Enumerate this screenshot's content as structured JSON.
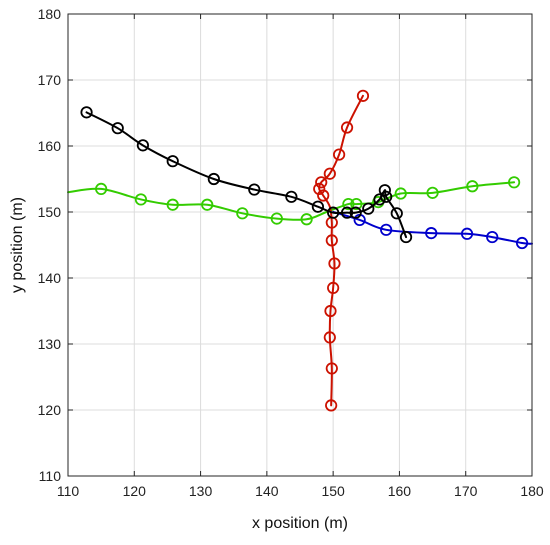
{
  "chart_data": {
    "type": "line",
    "xlabel": "x position (m)",
    "ylabel": "y position (m)",
    "xlim": [
      110,
      180
    ],
    "ylim": [
      110,
      180
    ],
    "xticks": [
      110,
      120,
      130,
      140,
      150,
      160,
      170,
      180
    ],
    "yticks": [
      110,
      120,
      130,
      140,
      150,
      160,
      170,
      180
    ],
    "grid": true,
    "series": [
      {
        "color": "#0000cc",
        "points": [
          [
            150,
            150
          ],
          [
            154,
            148.8
          ],
          [
            158,
            147.3
          ],
          [
            164.8,
            146.8
          ],
          [
            170.2,
            146.7
          ],
          [
            174,
            146.2
          ],
          [
            178.5,
            145.3
          ],
          [
            180,
            145.2
          ]
        ],
        "marker_points": [
          [
            154,
            148.8
          ],
          [
            158,
            147.3
          ],
          [
            164.8,
            146.8
          ],
          [
            170.2,
            146.7
          ],
          [
            174,
            146.2
          ],
          [
            178.5,
            145.3
          ]
        ]
      },
      {
        "color": "#33cc00",
        "points": [
          [
            110,
            153
          ],
          [
            115,
            153.5
          ],
          [
            121,
            151.9
          ],
          [
            125.8,
            151.1
          ],
          [
            131,
            151.1
          ],
          [
            136.3,
            149.8
          ],
          [
            141.5,
            149
          ],
          [
            146,
            148.9
          ],
          [
            149,
            150
          ],
          [
            152.3,
            151.2
          ],
          [
            153.5,
            151.2
          ],
          [
            156.8,
            151.5
          ],
          [
            160.2,
            152.8
          ],
          [
            165,
            152.9
          ],
          [
            171,
            153.9
          ],
          [
            177.3,
            154.5
          ]
        ],
        "marker_points": [
          [
            115,
            153.5
          ],
          [
            121,
            151.9
          ],
          [
            125.8,
            151.1
          ],
          [
            131,
            151.1
          ],
          [
            136.3,
            149.8
          ],
          [
            141.5,
            149
          ],
          [
            146,
            148.9
          ],
          [
            152.3,
            151.2
          ],
          [
            153.5,
            151.2
          ],
          [
            156.8,
            151.5
          ],
          [
            160.2,
            152.8
          ],
          [
            165,
            152.9
          ],
          [
            171,
            153.9
          ],
          [
            177.3,
            154.5
          ]
        ]
      },
      {
        "color": "#cc1100",
        "points": [
          [
            149.7,
            120.7
          ],
          [
            149.8,
            126.3
          ],
          [
            149.5,
            131
          ],
          [
            149.6,
            135
          ],
          [
            150,
            138.5
          ],
          [
            150.2,
            142.2
          ],
          [
            149.8,
            145.7
          ],
          [
            149.8,
            148.4
          ],
          [
            149.5,
            150.8
          ],
          [
            148.5,
            152.5
          ],
          [
            147.9,
            153.5
          ],
          [
            148.2,
            154.5
          ],
          [
            149.5,
            155.8
          ],
          [
            150.9,
            158.7
          ],
          [
            152.1,
            162.8
          ],
          [
            154.5,
            167.6
          ]
        ],
        "marker_points": [
          [
            149.7,
            120.7
          ],
          [
            149.8,
            126.3
          ],
          [
            149.5,
            131
          ],
          [
            149.6,
            135
          ],
          [
            150,
            138.5
          ],
          [
            150.2,
            142.2
          ],
          [
            149.8,
            145.7
          ],
          [
            149.8,
            148.4
          ],
          [
            148.5,
            152.5
          ],
          [
            147.9,
            153.5
          ],
          [
            148.2,
            154.5
          ],
          [
            149.5,
            155.8
          ],
          [
            150.9,
            158.7
          ],
          [
            152.1,
            162.8
          ],
          [
            154.5,
            167.6
          ]
        ]
      },
      {
        "color": "#000000",
        "points": [
          [
            112.8,
            165.1
          ],
          [
            117.5,
            162.7
          ],
          [
            121.3,
            160.1
          ],
          [
            125.8,
            157.7
          ],
          [
            132,
            155
          ],
          [
            138.1,
            153.4
          ],
          [
            143.7,
            152.3
          ],
          [
            147.7,
            150.8
          ],
          [
            150,
            149.9
          ],
          [
            152.1,
            149.9
          ],
          [
            153.4,
            149.9
          ],
          [
            155.3,
            150.5
          ],
          [
            157,
            151.9
          ],
          [
            157.8,
            153.3
          ],
          [
            158,
            152.3
          ],
          [
            159.6,
            149.8
          ],
          [
            161,
            146.2
          ]
        ],
        "marker_points": [
          [
            112.8,
            165.1
          ],
          [
            117.5,
            162.7
          ],
          [
            121.3,
            160.1
          ],
          [
            125.8,
            157.7
          ],
          [
            132,
            155
          ],
          [
            138.1,
            153.4
          ],
          [
            143.7,
            152.3
          ],
          [
            147.7,
            150.8
          ],
          [
            150,
            149.9
          ],
          [
            152.1,
            149.9
          ],
          [
            153.4,
            149.9
          ],
          [
            155.3,
            150.5
          ],
          [
            157,
            151.9
          ],
          [
            157.8,
            153.3
          ],
          [
            158,
            152.3
          ],
          [
            159.6,
            149.8
          ],
          [
            161,
            146.2
          ]
        ]
      }
    ]
  }
}
